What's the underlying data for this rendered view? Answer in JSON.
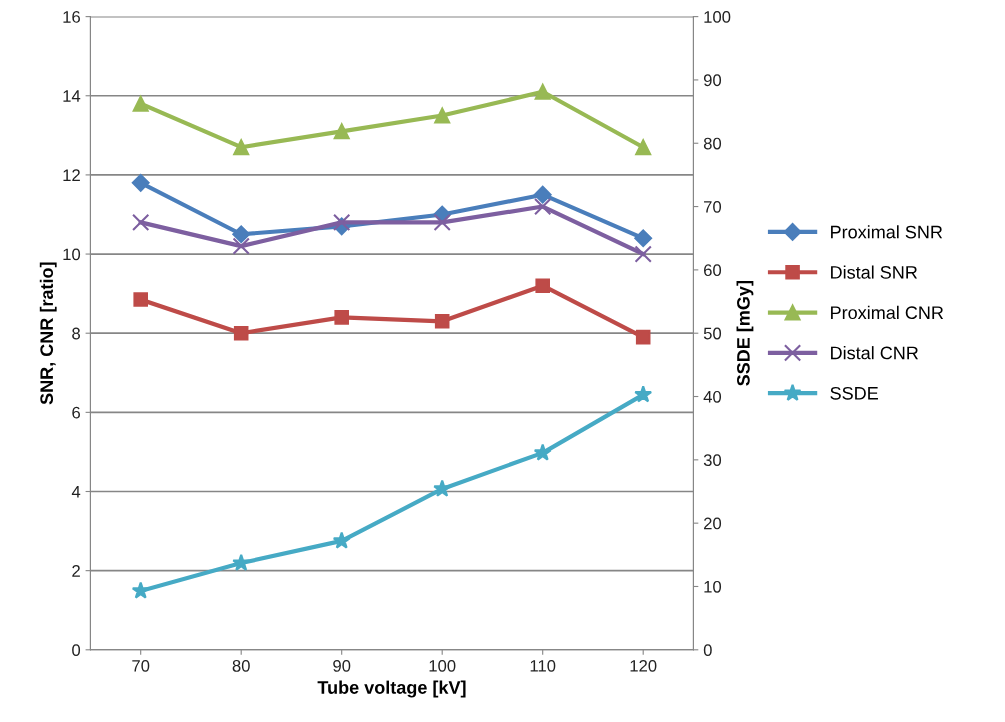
{
  "chart_data": {
    "type": "line",
    "xlabel": "Tube voltage [kV]",
    "ylabel": "SNR, CNR [ratio]",
    "y2label": "SSDE [mGy]",
    "categories": [
      "70",
      "80",
      "90",
      "100",
      "110",
      "120"
    ],
    "series": [
      {
        "name": "Proximal SNR",
        "color": "#4a7ebb",
        "marker": "diamond",
        "values": [
          11.8,
          10.5,
          10.7,
          11.0,
          11.5,
          10.4
        ]
      },
      {
        "name": "Distal SNR",
        "color": "#be4b48",
        "marker": "square",
        "values": [
          8.85,
          8.0,
          8.4,
          8.3,
          9.2,
          7.9
        ]
      },
      {
        "name": "Proximal CNR",
        "color": "#98b954",
        "marker": "triangle",
        "values": [
          13.8,
          12.7,
          13.1,
          13.5,
          14.1,
          12.7
        ]
      },
      {
        "name": "Distal CNR",
        "color": "#7d5fa0",
        "marker": "cross",
        "values": [
          10.8,
          10.2,
          10.8,
          10.8,
          11.2,
          10.0
        ]
      },
      {
        "name": "SSDE",
        "color": "#46aac5",
        "marker": "star",
        "axis": "y2",
        "values": [
          9.3,
          13.7,
          17.2,
          25.4,
          31.1,
          40.3
        ]
      }
    ],
    "ylim": [
      0,
      16
    ],
    "yticks": [
      0,
      2,
      4,
      6,
      8,
      10,
      12,
      14,
      16
    ],
    "y2lim": [
      0,
      100
    ],
    "y2ticks": [
      0,
      10,
      20,
      30,
      40,
      50,
      60,
      70,
      80,
      90,
      100
    ],
    "grid": "y",
    "legend": "right"
  }
}
